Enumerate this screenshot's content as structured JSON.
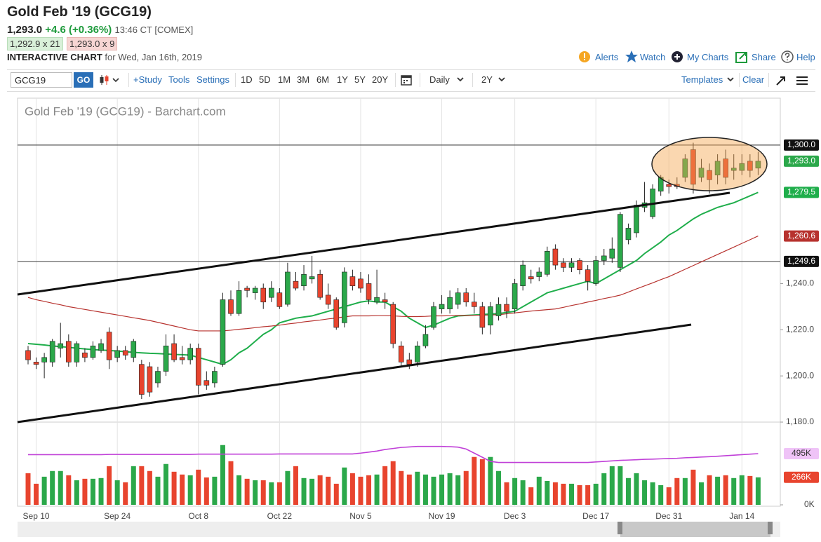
{
  "header": {
    "title": "Gold Feb '19 (GCG19)",
    "last": "1,293.0",
    "change": "+4.6",
    "change_pct": "(+0.36%)",
    "time": "13:46 CT [COMEX]",
    "bid": "1,292.9 x 21",
    "ask": "1,293.0 x 9",
    "chart_label": "INTERACTIVE CHART",
    "chart_date": "for Wed, Jan 16th, 2019"
  },
  "links": [
    "Alerts",
    "Watch",
    "My Charts",
    "Share",
    "Help"
  ],
  "toolbar": {
    "symbol": "GCG19",
    "go": "GO",
    "study": "+Study",
    "tools": "Tools",
    "settings": "Settings",
    "ranges": [
      "1D",
      "5D",
      "1M",
      "3M",
      "6M",
      "1Y",
      "5Y",
      "20Y"
    ],
    "interval": "Daily",
    "period": "2Y",
    "templates": "Templates",
    "clear": "Clear"
  },
  "chart_data": {
    "type": "candlestick",
    "title": "Gold Feb '19 (GCG19) - Barchart.com",
    "categories": [
      null,
      "Sep 10",
      null,
      null,
      null,
      null,
      null,
      null,
      null,
      null,
      null,
      "Sep 24",
      null,
      null,
      null,
      null,
      null,
      null,
      null,
      null,
      null,
      "Oct 8",
      null,
      null,
      null,
      null,
      null,
      null,
      null,
      null,
      null,
      "Oct 22",
      null,
      null,
      null,
      null,
      null,
      null,
      null,
      null,
      null,
      "Nov 5",
      null,
      null,
      null,
      null,
      null,
      null,
      null,
      null,
      null,
      "Nov 19",
      null,
      null,
      null,
      null,
      null,
      null,
      null,
      null,
      "Dec 3",
      null,
      null,
      null,
      null,
      null,
      null,
      null,
      null,
      null,
      "Dec 17",
      null,
      null,
      null,
      null,
      null,
      null,
      null,
      null,
      "Dec 31",
      null,
      null,
      null,
      null,
      null,
      null,
      null,
      null,
      "Jan 14",
      null,
      null
    ],
    "open": [
      1211,
      1206,
      1206,
      1206,
      1212,
      1215,
      1206,
      1210,
      1208,
      1211,
      1219,
      1208,
      1211,
      1208,
      1205,
      1204,
      1197,
      1202,
      1214,
      1208,
      1207,
      1212,
      1198,
      1197,
      1205,
      1233,
      1227,
      1238,
      1236,
      1238,
      1234,
      1236,
      1231,
      1241,
      1239,
      1242,
      1244,
      1235,
      1233,
      1223,
      1243,
      1242,
      1240,
      1232,
      1233,
      1231,
      1213,
      1207,
      1206,
      1213,
      1221,
      1229,
      1229,
      1231,
      1236,
      1232,
      1230,
      1222,
      1226,
      1231,
      1229,
      1239,
      1243,
      1243,
      1244,
      1255,
      1249,
      1247,
      1250,
      1246,
      1240,
      1250,
      1251,
      1247,
      1259,
      1262,
      1273,
      1269,
      1280,
      1283,
      1283,
      1286,
      1298,
      1286,
      1289,
      1287,
      1294,
      1289,
      1289,
      1293,
      1290
    ],
    "high": [
      1213,
      1208,
      1210,
      1216,
      1223,
      1218,
      1215,
      1212,
      1215,
      1216,
      1221,
      1213,
      1213,
      1216,
      1207,
      1206,
      1204,
      1218,
      1218,
      1213,
      1214,
      1214,
      1202,
      1204,
      1236,
      1237,
      1241,
      1239,
      1239,
      1240,
      1241,
      1238,
      1249,
      1245,
      1248,
      1252,
      1246,
      1240,
      1234,
      1247,
      1246,
      1245,
      1244,
      1246,
      1236,
      1232,
      1215,
      1210,
      1215,
      1222,
      1232,
      1235,
      1237,
      1238,
      1238,
      1236,
      1232,
      1232,
      1234,
      1234,
      1242,
      1250,
      1246,
      1247,
      1256,
      1257,
      1251,
      1251,
      1251,
      1248,
      1252,
      1255,
      1260,
      1271,
      1266,
      1276,
      1284,
      1283,
      1287,
      1285,
      1286,
      1296,
      1301,
      1294,
      1292,
      1296,
      1298,
      1296,
      1296,
      1296,
      1297
    ],
    "low": [
      1205,
      1203,
      1199,
      1204,
      1208,
      1204,
      1204,
      1206,
      1207,
      1210,
      1203,
      1206,
      1207,
      1206,
      1190,
      1191,
      1195,
      1200,
      1206,
      1205,
      1205,
      1192,
      1194,
      1195,
      1204,
      1226,
      1226,
      1234,
      1233,
      1229,
      1232,
      1229,
      1230,
      1237,
      1237,
      1240,
      1233,
      1229,
      1220,
      1221,
      1237,
      1236,
      1231,
      1231,
      1229,
      1212,
      1204,
      1203,
      1204,
      1212,
      1220,
      1227,
      1227,
      1229,
      1230,
      1227,
      1218,
      1218,
      1224,
      1225,
      1227,
      1237,
      1240,
      1241,
      1243,
      1246,
      1245,
      1245,
      1244,
      1237,
      1239,
      1248,
      1249,
      1245,
      1257,
      1260,
      1271,
      1268,
      1278,
      1279,
      1281,
      1284,
      1279,
      1284,
      1279,
      1283,
      1283,
      1285,
      1287,
      1286,
      1287
    ],
    "close": [
      1207,
      1205,
      1208,
      1215,
      1214,
      1206,
      1214,
      1208,
      1213,
      1214,
      1207,
      1211,
      1209,
      1215,
      1192,
      1193,
      1202,
      1213,
      1207,
      1207,
      1212,
      1196,
      1196,
      1202,
      1233,
      1227,
      1237,
      1237,
      1238,
      1232,
      1238,
      1230,
      1245,
      1238,
      1244,
      1243,
      1234,
      1231,
      1221,
      1245,
      1239,
      1238,
      1233,
      1234,
      1232,
      1214,
      1206,
      1205,
      1213,
      1218,
      1230,
      1231,
      1234,
      1236,
      1232,
      1230,
      1221,
      1230,
      1231,
      1228,
      1240,
      1248,
      1242,
      1245,
      1254,
      1248,
      1247,
      1249,
      1246,
      1241,
      1250,
      1252,
      1255,
      1270,
      1264,
      1274,
      1275,
      1281,
      1286,
      1282,
      1282,
      1294,
      1283,
      1290,
      1285,
      1293,
      1286,
      1290,
      1292,
      1289,
      1293
    ],
    "up_color": "#2ba84a",
    "down_color": "#e8442e",
    "ylim": [
      1180,
      1320
    ],
    "yticks": [
      {
        "value": 1180,
        "label": "1,180.0"
      },
      {
        "value": 1200,
        "label": "1,200.0"
      },
      {
        "value": 1220,
        "label": "1,220.0"
      },
      {
        "value": 1240,
        "label": "1,240.0"
      }
    ],
    "hlines": [
      {
        "value": 1300,
        "label": "1,300.0"
      },
      {
        "value": 1249.6,
        "label": "1,249.6"
      }
    ],
    "last_price": {
      "value": 1293,
      "label": "1,293.0",
      "color": "#2ba84a"
    },
    "grid": true,
    "overlays": [
      {
        "color": "#1fae4b",
        "last_label": "1,279.5",
        "values": [
          1214,
          1213.7,
          1213.4,
          1213,
          1212.7,
          1212.4,
          1212,
          1211.7,
          1211.4,
          1211.2,
          1211,
          1210.8,
          1210.5,
          1210.2,
          1210,
          1209.8,
          1209.7,
          1209.5,
          1209.3,
          1209.2,
          1209,
          1208,
          1207,
          1206,
          1205,
          1207,
          1210,
          1212,
          1215,
          1218,
          1220,
          1223,
          1224,
          1225,
          1225.5,
          1226,
          1227,
          1228,
          1229,
          1230,
          1231,
          1232,
          1232.5,
          1232,
          1232,
          1230,
          1228,
          1225,
          1223,
          1221,
          1222,
          1223.5,
          1225,
          1226,
          1226.2,
          1226.4,
          1226.6,
          1226.8,
          1227,
          1227.5,
          1228,
          1230,
          1232,
          1234,
          1236,
          1237,
          1238,
          1239,
          1240,
          1241,
          1240,
          1242,
          1244,
          1246,
          1248,
          1250,
          1253,
          1255.5,
          1258,
          1261,
          1263,
          1265.5,
          1268,
          1270,
          1271.5,
          1273,
          1274,
          1275,
          1276.5,
          1278,
          1279.5
        ]
      },
      {
        "color": "#b7322e",
        "last_label": "1,260.6",
        "values": [
          1234,
          1233,
          1232.3,
          1231.5,
          1230.8,
          1230,
          1229.4,
          1228.8,
          1228.2,
          1227.6,
          1227,
          1226.4,
          1225.8,
          1225.2,
          1224.6,
          1224,
          1223.2,
          1222.4,
          1221.6,
          1220.8,
          1220,
          1219.5,
          1219.5,
          1219.5,
          1219.5,
          1219.8,
          1220.2,
          1220.5,
          1220.9,
          1221.3,
          1221.6,
          1222,
          1222.5,
          1222.9,
          1223.4,
          1223.8,
          1224.2,
          1224.7,
          1225.1,
          1225.6,
          1226,
          1226,
          1226,
          1226.1,
          1226.1,
          1226,
          1225.8,
          1225.7,
          1225.7,
          1225.8,
          1226,
          1226,
          1226.1,
          1226.2,
          1226.2,
          1226.3,
          1226.3,
          1226.4,
          1226.5,
          1226.9,
          1227.3,
          1227.7,
          1228.1,
          1228.4,
          1228.7,
          1229,
          1229.7,
          1230.5,
          1231.2,
          1232,
          1232.7,
          1233.5,
          1234.2,
          1235,
          1236.3,
          1237.7,
          1239,
          1240.3,
          1241.7,
          1243,
          1244.6,
          1246.2,
          1247.8,
          1249.4,
          1251,
          1252.6,
          1254.2,
          1255.8,
          1257.4,
          1259,
          1260.6
        ]
      }
    ],
    "volume": {
      "ylim": [
        0,
        800000
      ],
      "yticks": [
        {
          "value": 0,
          "label": "0K"
        }
      ],
      "last_label": "266K",
      "last_color": "#e8442e",
      "values": [
        306000,
        204000,
        272000,
        327000,
        327000,
        286000,
        238000,
        252000,
        252000,
        259000,
        374000,
        238000,
        218000,
        374000,
        374000,
        327000,
        272000,
        395000,
        320000,
        293000,
        286000,
        340000,
        265000,
        272000,
        578000,
        422000,
        286000,
        252000,
        238000,
        238000,
        218000,
        218000,
        327000,
        374000,
        259000,
        252000,
        286000,
        272000,
        204000,
        361000,
        306000,
        272000,
        286000,
        293000,
        374000,
        422000,
        327000,
        293000,
        320000,
        293000,
        272000,
        293000,
        306000,
        286000,
        327000,
        463000,
        442000,
        463000,
        327000,
        218000,
        259000,
        238000,
        170000,
        272000,
        231000,
        218000,
        204000,
        204000,
        190000,
        190000,
        204000,
        306000,
        374000,
        374000,
        259000,
        306000,
        238000,
        218000,
        190000,
        170000,
        259000,
        259000,
        340000,
        218000,
        286000,
        272000,
        286000,
        259000,
        286000,
        279000,
        266000
      ]
    },
    "open_interest": {
      "color": "#c040d8",
      "last_label": "495K",
      "values": [
        485000,
        485000,
        485000,
        485000,
        485000,
        485000,
        485000,
        485000,
        485000,
        485000,
        488000,
        488000,
        488000,
        488000,
        488000,
        488000,
        488000,
        488000,
        488000,
        488000,
        488000,
        490000,
        490000,
        490000,
        490000,
        490000,
        490000,
        490000,
        490000,
        490000,
        490000,
        492000,
        492000,
        492000,
        492000,
        492000,
        492000,
        492000,
        492000,
        492000,
        492000,
        500000,
        510000,
        520000,
        535000,
        545000,
        555000,
        560000,
        565000,
        565000,
        565000,
        565000,
        562000,
        558000,
        540000,
        500000,
        460000,
        420000,
        410000,
        410000,
        410000,
        410000,
        410000,
        410000,
        410000,
        410000,
        410000,
        410000,
        410000,
        410000,
        415000,
        420000,
        425000,
        430000,
        433000,
        436000,
        440000,
        442000,
        445000,
        448000,
        450000,
        455000,
        458000,
        462000,
        466000,
        470000,
        475000,
        480000,
        485000,
        490000,
        495000
      ]
    }
  }
}
